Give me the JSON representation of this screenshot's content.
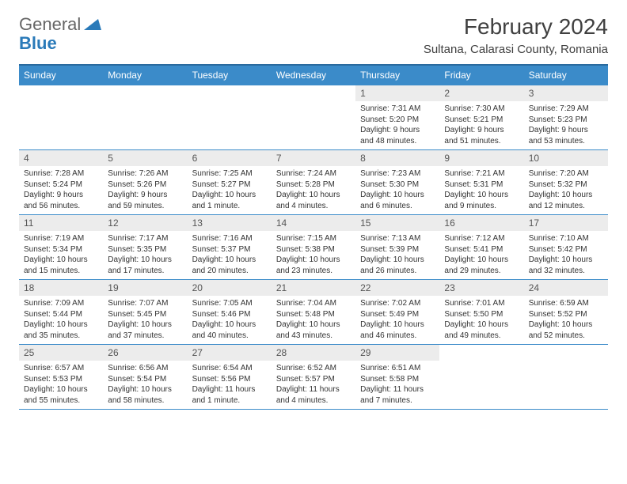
{
  "logo": {
    "part1": "General",
    "part2": "Blue"
  },
  "title": "February 2024",
  "location": "Sultana, Calarasi County, Romania",
  "colors": {
    "header_bg": "#3b8bc9",
    "header_border": "#2a6a9e",
    "cell_border": "#3b8bc9",
    "daynum_bg": "#ececec",
    "text": "#333333",
    "logo_gray": "#666666",
    "logo_blue": "#2a7ab9"
  },
  "typography": {
    "title_fontsize": 28,
    "location_fontsize": 15,
    "dayheader_fontsize": 12,
    "daynum_fontsize": 12,
    "body_fontsize": 10
  },
  "day_headers": [
    "Sunday",
    "Monday",
    "Tuesday",
    "Wednesday",
    "Thursday",
    "Friday",
    "Saturday"
  ],
  "weeks": [
    [
      null,
      null,
      null,
      null,
      {
        "n": "1",
        "sunrise": "Sunrise: 7:31 AM",
        "sunset": "Sunset: 5:20 PM",
        "daylight": "Daylight: 9 hours and 48 minutes."
      },
      {
        "n": "2",
        "sunrise": "Sunrise: 7:30 AM",
        "sunset": "Sunset: 5:21 PM",
        "daylight": "Daylight: 9 hours and 51 minutes."
      },
      {
        "n": "3",
        "sunrise": "Sunrise: 7:29 AM",
        "sunset": "Sunset: 5:23 PM",
        "daylight": "Daylight: 9 hours and 53 minutes."
      }
    ],
    [
      {
        "n": "4",
        "sunrise": "Sunrise: 7:28 AM",
        "sunset": "Sunset: 5:24 PM",
        "daylight": "Daylight: 9 hours and 56 minutes."
      },
      {
        "n": "5",
        "sunrise": "Sunrise: 7:26 AM",
        "sunset": "Sunset: 5:26 PM",
        "daylight": "Daylight: 9 hours and 59 minutes."
      },
      {
        "n": "6",
        "sunrise": "Sunrise: 7:25 AM",
        "sunset": "Sunset: 5:27 PM",
        "daylight": "Daylight: 10 hours and 1 minute."
      },
      {
        "n": "7",
        "sunrise": "Sunrise: 7:24 AM",
        "sunset": "Sunset: 5:28 PM",
        "daylight": "Daylight: 10 hours and 4 minutes."
      },
      {
        "n": "8",
        "sunrise": "Sunrise: 7:23 AM",
        "sunset": "Sunset: 5:30 PM",
        "daylight": "Daylight: 10 hours and 6 minutes."
      },
      {
        "n": "9",
        "sunrise": "Sunrise: 7:21 AM",
        "sunset": "Sunset: 5:31 PM",
        "daylight": "Daylight: 10 hours and 9 minutes."
      },
      {
        "n": "10",
        "sunrise": "Sunrise: 7:20 AM",
        "sunset": "Sunset: 5:32 PM",
        "daylight": "Daylight: 10 hours and 12 minutes."
      }
    ],
    [
      {
        "n": "11",
        "sunrise": "Sunrise: 7:19 AM",
        "sunset": "Sunset: 5:34 PM",
        "daylight": "Daylight: 10 hours and 15 minutes."
      },
      {
        "n": "12",
        "sunrise": "Sunrise: 7:17 AM",
        "sunset": "Sunset: 5:35 PM",
        "daylight": "Daylight: 10 hours and 17 minutes."
      },
      {
        "n": "13",
        "sunrise": "Sunrise: 7:16 AM",
        "sunset": "Sunset: 5:37 PM",
        "daylight": "Daylight: 10 hours and 20 minutes."
      },
      {
        "n": "14",
        "sunrise": "Sunrise: 7:15 AM",
        "sunset": "Sunset: 5:38 PM",
        "daylight": "Daylight: 10 hours and 23 minutes."
      },
      {
        "n": "15",
        "sunrise": "Sunrise: 7:13 AM",
        "sunset": "Sunset: 5:39 PM",
        "daylight": "Daylight: 10 hours and 26 minutes."
      },
      {
        "n": "16",
        "sunrise": "Sunrise: 7:12 AM",
        "sunset": "Sunset: 5:41 PM",
        "daylight": "Daylight: 10 hours and 29 minutes."
      },
      {
        "n": "17",
        "sunrise": "Sunrise: 7:10 AM",
        "sunset": "Sunset: 5:42 PM",
        "daylight": "Daylight: 10 hours and 32 minutes."
      }
    ],
    [
      {
        "n": "18",
        "sunrise": "Sunrise: 7:09 AM",
        "sunset": "Sunset: 5:44 PM",
        "daylight": "Daylight: 10 hours and 35 minutes."
      },
      {
        "n": "19",
        "sunrise": "Sunrise: 7:07 AM",
        "sunset": "Sunset: 5:45 PM",
        "daylight": "Daylight: 10 hours and 37 minutes."
      },
      {
        "n": "20",
        "sunrise": "Sunrise: 7:05 AM",
        "sunset": "Sunset: 5:46 PM",
        "daylight": "Daylight: 10 hours and 40 minutes."
      },
      {
        "n": "21",
        "sunrise": "Sunrise: 7:04 AM",
        "sunset": "Sunset: 5:48 PM",
        "daylight": "Daylight: 10 hours and 43 minutes."
      },
      {
        "n": "22",
        "sunrise": "Sunrise: 7:02 AM",
        "sunset": "Sunset: 5:49 PM",
        "daylight": "Daylight: 10 hours and 46 minutes."
      },
      {
        "n": "23",
        "sunrise": "Sunrise: 7:01 AM",
        "sunset": "Sunset: 5:50 PM",
        "daylight": "Daylight: 10 hours and 49 minutes."
      },
      {
        "n": "24",
        "sunrise": "Sunrise: 6:59 AM",
        "sunset": "Sunset: 5:52 PM",
        "daylight": "Daylight: 10 hours and 52 minutes."
      }
    ],
    [
      {
        "n": "25",
        "sunrise": "Sunrise: 6:57 AM",
        "sunset": "Sunset: 5:53 PM",
        "daylight": "Daylight: 10 hours and 55 minutes."
      },
      {
        "n": "26",
        "sunrise": "Sunrise: 6:56 AM",
        "sunset": "Sunset: 5:54 PM",
        "daylight": "Daylight: 10 hours and 58 minutes."
      },
      {
        "n": "27",
        "sunrise": "Sunrise: 6:54 AM",
        "sunset": "Sunset: 5:56 PM",
        "daylight": "Daylight: 11 hours and 1 minute."
      },
      {
        "n": "28",
        "sunrise": "Sunrise: 6:52 AM",
        "sunset": "Sunset: 5:57 PM",
        "daylight": "Daylight: 11 hours and 4 minutes."
      },
      {
        "n": "29",
        "sunrise": "Sunrise: 6:51 AM",
        "sunset": "Sunset: 5:58 PM",
        "daylight": "Daylight: 11 hours and 7 minutes."
      },
      null,
      null
    ]
  ]
}
